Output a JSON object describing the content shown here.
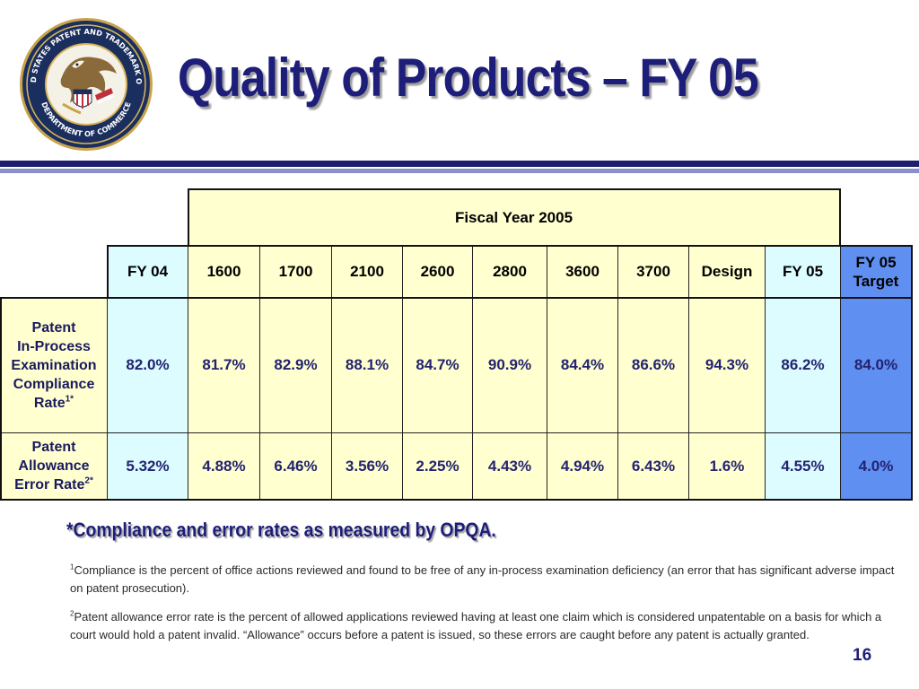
{
  "title": "Quality of Products – FY 05",
  "seal": {
    "label": "United States Patent and Trademark Office seal",
    "text_top": "UNITED STATES PATENT AND TRADEMARK OFFICE",
    "text_bottom": "DEPARTMENT OF COMMERCE"
  },
  "table": {
    "super_header": "Fiscal Year 2005",
    "columns": [
      "FY 04",
      "1600",
      "1700",
      "2100",
      "2600",
      "2800",
      "3600",
      "3700",
      "Design",
      "FY 05"
    ],
    "target_header": {
      "line1": "FY 05",
      "line2": "Target"
    },
    "rows": [
      {
        "label_lines": [
          "Patent",
          "In-Process",
          "Examination",
          "Compliance",
          "Rate"
        ],
        "label_sup": "1*",
        "values": [
          "82.0%",
          "81.7%",
          "82.9%",
          "88.1%",
          "84.7%",
          "90.9%",
          "84.4%",
          "86.6%",
          "94.3%",
          "86.2%",
          "84.0%"
        ]
      },
      {
        "label_lines": [
          "Patent",
          "Allowance",
          "Error Rate"
        ],
        "label_sup": "2*",
        "values": [
          "5.32%",
          "4.88%",
          "6.46%",
          "3.56%",
          "2.25%",
          "4.43%",
          "4.94%",
          "6.43%",
          "1.6%",
          "4.55%",
          "4.0%"
        ]
      }
    ]
  },
  "notes": {
    "main": "*Compliance and error rates as measured by OPQA.",
    "fn1_mark": "1",
    "fn1_text": "Compliance is the percent of office actions reviewed and found to be free of any in-process examination deficiency (an error that has significant adverse impact on patent prosecution).",
    "fn2_mark": "2",
    "fn2_text": "Patent allowance error rate is the percent of allowed applications reviewed having at least one claim which is considered unpatentable on a basis for which a court would hold a patent invalid.  “Allowance” occurs before a patent is issued, so these errors are caught before any patent is actually granted."
  },
  "page_number": "16",
  "colors": {
    "title": "#1d1d7a",
    "rule_dark": "#1f1f6e",
    "rule_light": "#8b8fc7",
    "cell_yellow": "#ffffd0",
    "cell_cyan": "#dcfcff",
    "cell_blue": "#5f8ff0"
  }
}
